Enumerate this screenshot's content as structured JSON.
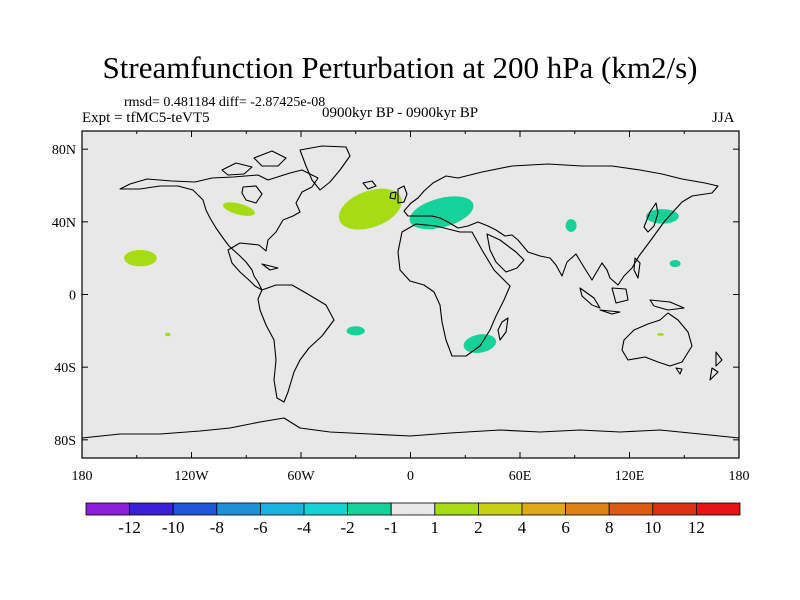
{
  "title": "Streamfunction Perturbation at 200 hPa (km2/s)",
  "stats": "rmsd= 0.481184 diff= -2.87425e-08",
  "experiment": "Expt = tfMC5-teVT5",
  "period": "0900kyr BP - 0900kyr BP",
  "season": "JJA",
  "map": {
    "lon_range": [
      -180,
      180
    ],
    "lat_range": [
      -90,
      90
    ],
    "x_ticks": [
      "180",
      "120W",
      "60W",
      "0",
      "60E",
      "120E",
      "180"
    ],
    "y_ticks": [
      "80N",
      "40N",
      "0",
      "40S",
      "80S"
    ]
  },
  "colorbar": {
    "labels": [
      "-12",
      "-10",
      "-8",
      "-6",
      "-4",
      "-2",
      "-1",
      "1",
      "2",
      "4",
      "6",
      "8",
      "10",
      "12"
    ],
    "colors": [
      "#8a1fd6",
      "#3a1fd6",
      "#1f55d6",
      "#1f8fd6",
      "#14b4dc",
      "#14d2d2",
      "#14d29a",
      "#e8e8e8",
      "#a6dc14",
      "#c8d014",
      "#dcaa14",
      "#dc8214",
      "#dc5a14",
      "#dc3214",
      "#e61414"
    ],
    "neutral_color": "#e8e8e8"
  },
  "anomalies": [
    {
      "name": "north-atlantic-positive",
      "lon": -22,
      "lat": 47,
      "rlon": 18,
      "rlat": 10,
      "rot": -20,
      "color": "#a6dc14"
    },
    {
      "name": "great-lakes-positive",
      "lon": -94,
      "lat": 47,
      "rlon": 9,
      "rlat": 3,
      "rot": 15,
      "color": "#a6dc14"
    },
    {
      "name": "hawaii-positive",
      "lon": -148,
      "lat": 20,
      "rlon": 9,
      "rlat": 4.5,
      "rot": 0,
      "color": "#a6dc14"
    },
    {
      "name": "south-pacific-positive",
      "lon": -133,
      "lat": -22,
      "rlon": 1.5,
      "rlat": 1,
      "rot": 0,
      "color": "#a6dc14"
    },
    {
      "name": "australia-positive",
      "lon": 137,
      "lat": -22,
      "rlon": 2,
      "rlat": 0.8,
      "rot": 0,
      "color": "#a6dc14"
    },
    {
      "name": "europe-negative",
      "lon": 17,
      "lat": 45,
      "rlon": 18,
      "rlat": 8,
      "rot": -15,
      "color": "#14d29a"
    },
    {
      "name": "central-asia-negative",
      "lon": 88,
      "lat": 38,
      "rlon": 3,
      "rlat": 3.5,
      "rot": 0,
      "color": "#14d29a"
    },
    {
      "name": "japan-negative",
      "lon": 138,
      "lat": 43,
      "rlon": 9,
      "rlat": 4,
      "rot": 0,
      "color": "#14d29a"
    },
    {
      "name": "west-pacific-negative",
      "lon": 145,
      "lat": 17,
      "rlon": 3,
      "rlat": 2,
      "rot": 0,
      "color": "#14d29a"
    },
    {
      "name": "south-atlantic-negative",
      "lon": -30,
      "lat": -20,
      "rlon": 5,
      "rlat": 2.5,
      "rot": 0,
      "color": "#14d29a"
    },
    {
      "name": "southern-africa-negative",
      "lon": 38,
      "lat": -27,
      "rlon": 9,
      "rlat": 5,
      "rot": -10,
      "color": "#14d29a"
    }
  ]
}
